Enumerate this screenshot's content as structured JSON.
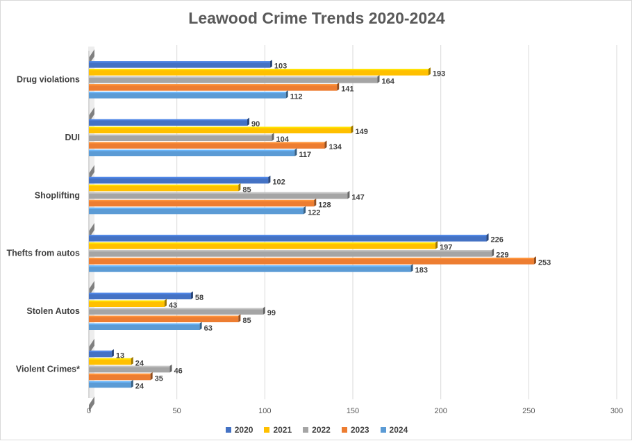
{
  "chart_data": {
    "type": "bar",
    "orientation": "horizontal",
    "title": "Leawood Crime Trends 2020-2024",
    "xlabel": "",
    "ylabel": "",
    "xlim": [
      0,
      300
    ],
    "xticks": [
      0,
      50,
      100,
      150,
      200,
      250,
      300
    ],
    "grid": true,
    "legend_position": "bottom",
    "categories": [
      "Drug violations",
      "DUI",
      "Shoplifting",
      "Thefts from autos",
      "Stolen Autos",
      "Violent Crimes*"
    ],
    "series": [
      {
        "name": "2020",
        "color": "#4472c4",
        "values": [
          103,
          90,
          102,
          226,
          58,
          13
        ]
      },
      {
        "name": "2021",
        "color": "#ffc000",
        "values": [
          193,
          149,
          85,
          197,
          43,
          24
        ]
      },
      {
        "name": "2022",
        "color": "#a5a5a5",
        "values": [
          164,
          104,
          147,
          229,
          99,
          46
        ]
      },
      {
        "name": "2023",
        "color": "#ed7d31",
        "values": [
          141,
          134,
          128,
          253,
          85,
          35
        ]
      },
      {
        "name": "2024",
        "color": "#5b9bd5",
        "values": [
          112,
          117,
          122,
          183,
          63,
          24
        ]
      }
    ]
  }
}
